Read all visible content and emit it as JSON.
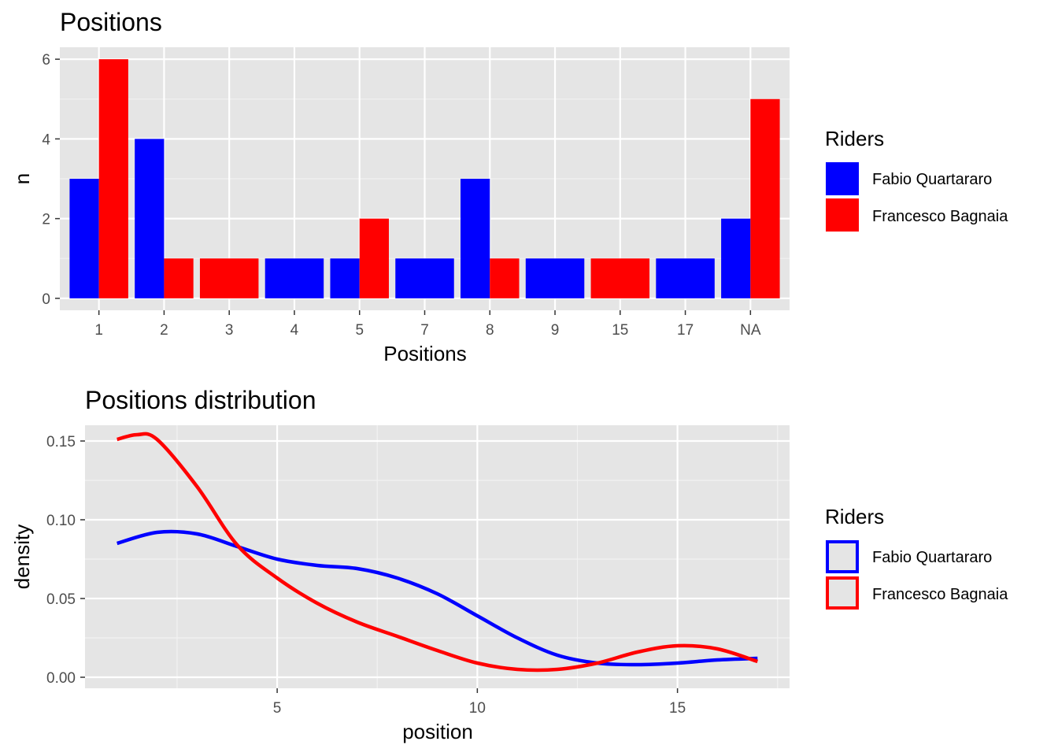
{
  "colors": {
    "panel_bg": "#E5E5E5",
    "grid_major": "#FFFFFF",
    "grid_minor": "#F2F2F2",
    "tick_text": "#4D4D4D",
    "tick_mark": "#333333",
    "fabio": "#0000FF",
    "francesco": "#FF0000"
  },
  "chart_data": [
    {
      "type": "bar",
      "title": "Positions",
      "xlabel": "Positions",
      "ylabel": "n",
      "categories": [
        "1",
        "2",
        "3",
        "4",
        "5",
        "7",
        "8",
        "9",
        "15",
        "17",
        "NA"
      ],
      "ylim": [
        0,
        6.3
      ],
      "yticks": [
        0,
        2,
        4,
        6
      ],
      "grid": true,
      "legend": {
        "title": "Riders",
        "position": "right"
      },
      "series": [
        {
          "name": "Fabio Quartararo",
          "color": "#0000FF",
          "values": [
            3,
            4,
            0,
            1,
            1,
            1,
            3,
            1,
            0,
            1,
            2
          ]
        },
        {
          "name": "Francesco Bagnaia",
          "color": "#FF0000",
          "values": [
            6,
            1,
            1,
            0,
            2,
            0,
            1,
            0,
            1,
            0,
            5
          ]
        }
      ]
    },
    {
      "type": "line",
      "title": "Positions distribution",
      "xlabel": "position",
      "ylabel": "density",
      "xlim": [
        0.2,
        17.8
      ],
      "ylim": [
        -0.007,
        0.16
      ],
      "xticks": [
        5,
        10,
        15
      ],
      "yticks": [
        0.0,
        0.05,
        0.1,
        0.15
      ],
      "ytick_labels": [
        "0.00",
        "0.05",
        "0.10",
        "0.15"
      ],
      "grid": true,
      "legend": {
        "title": "Riders",
        "position": "right"
      },
      "series": [
        {
          "name": "Fabio Quartararo",
          "color": "#0000FF",
          "x": [
            1,
            2,
            3,
            4,
            5,
            6,
            7,
            8,
            9,
            10,
            11,
            12,
            13,
            14,
            15,
            16,
            17
          ],
          "y": [
            0.085,
            0.092,
            0.091,
            0.083,
            0.075,
            0.071,
            0.069,
            0.063,
            0.053,
            0.039,
            0.025,
            0.014,
            0.009,
            0.008,
            0.009,
            0.011,
            0.012
          ]
        },
        {
          "name": "Francesco Bagnaia",
          "color": "#FF0000",
          "x": [
            1,
            1.5,
            2,
            3,
            4,
            5,
            6,
            7,
            8,
            9,
            10,
            11,
            12,
            13,
            14,
            15,
            16,
            17
          ],
          "y": [
            0.151,
            0.154,
            0.151,
            0.121,
            0.084,
            0.063,
            0.047,
            0.035,
            0.026,
            0.017,
            0.009,
            0.005,
            0.005,
            0.009,
            0.016,
            0.02,
            0.018,
            0.01
          ]
        }
      ]
    }
  ]
}
